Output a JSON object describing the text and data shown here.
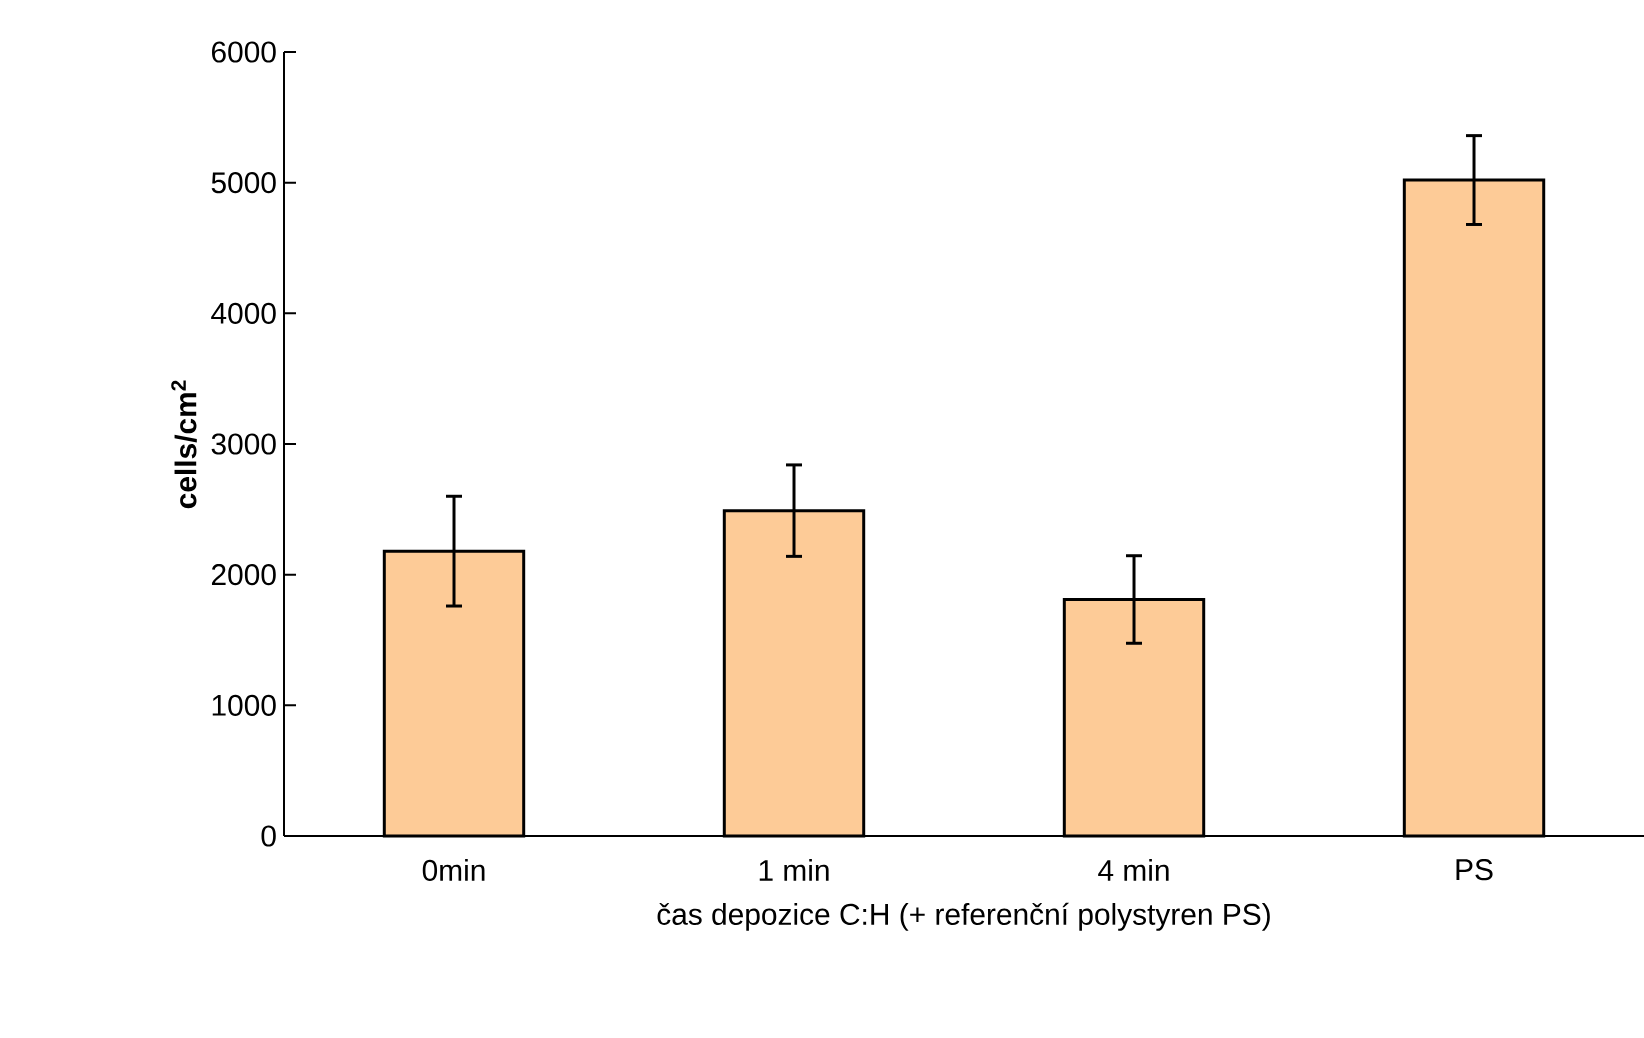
{
  "chart_data": {
    "type": "bar",
    "xlabel": "čas depozice C:H (+ referenční polystyren PS)",
    "ylabel": "cells/cm$^{2}$",
    "categories": [
      "0min",
      "1 min",
      "4 min",
      "PS"
    ],
    "values": [
      2180,
      2490,
      1810,
      5020
    ],
    "errors": [
      420,
      350,
      335,
      340
    ],
    "color": "#fdcb97",
    "ylim": [
      0,
      6000
    ],
    "yticks": [
      0,
      1000,
      2000,
      3000,
      4000,
      5000,
      6000
    ],
    "grid": false
  }
}
